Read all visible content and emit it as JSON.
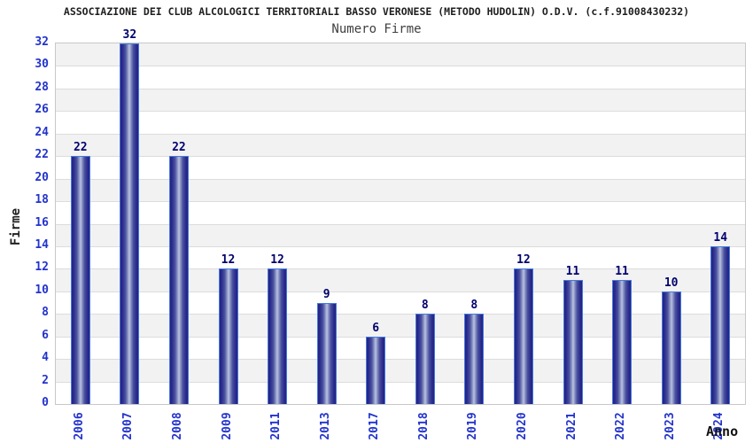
{
  "header": {
    "title": "ASSOCIAZIONE DEI CLUB ALCOLOGICI TERRITORIALI BASSO VERONESE (METODO HUDOLIN) O.D.V. (c.f.91008430232)",
    "subtitle": "Numero Firme"
  },
  "chart_data": {
    "type": "bar",
    "title": "Numero Firme",
    "categories": [
      "2006",
      "2007",
      "2008",
      "2009",
      "2011",
      "2013",
      "2017",
      "2018",
      "2019",
      "2020",
      "2021",
      "2022",
      "2023",
      "2024"
    ],
    "values": [
      22,
      32,
      22,
      12,
      12,
      9,
      6,
      8,
      8,
      12,
      11,
      11,
      10,
      14
    ],
    "xlabel": "Anno",
    "ylabel": "Firme",
    "ylim": [
      0,
      32
    ],
    "ytick_step": 2,
    "yticks": [
      0,
      2,
      4,
      6,
      8,
      10,
      12,
      14,
      16,
      18,
      20,
      22,
      24,
      26,
      28,
      30,
      32
    ],
    "grid": true,
    "legend_position": "none",
    "colors": {
      "band_light": "#ffffff",
      "band_dark": "#f2f2f2",
      "gridline": "#dcdcdc",
      "plot_border": "#c8c8c8",
      "bar_dark": "#23237f",
      "bar_highlight": "#bcc3e1",
      "bar_outline": "#4579de",
      "tick_text": "#2233cc",
      "value_text": "#00006e",
      "title_text": "#1f1f1f"
    }
  }
}
